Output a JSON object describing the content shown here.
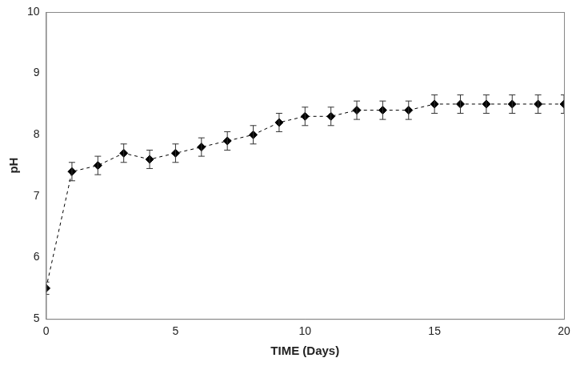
{
  "chart_data": {
    "type": "line",
    "x_label": "TIME (Days)",
    "y_label": "pH",
    "x": [
      0,
      1,
      2,
      3,
      4,
      5,
      6,
      7,
      8,
      9,
      10,
      11,
      12,
      13,
      14,
      15,
      16,
      17,
      18,
      19,
      20
    ],
    "values": [
      5.5,
      7.4,
      7.5,
      7.7,
      7.6,
      7.7,
      7.8,
      7.9,
      8.0,
      8.2,
      8.3,
      8.3,
      8.4,
      8.4,
      8.4,
      8.5,
      8.5,
      8.5,
      8.5,
      8.5,
      8.5
    ],
    "errors": [
      0.1,
      0.15,
      0.15,
      0.15,
      0.15,
      0.15,
      0.15,
      0.15,
      0.15,
      0.15,
      0.15,
      0.15,
      0.15,
      0.15,
      0.15,
      0.15,
      0.15,
      0.15,
      0.15,
      0.15,
      0.15
    ],
    "color": "#000000",
    "marker": "diamond",
    "line_style": "dashed",
    "xlim": [
      0,
      20
    ],
    "xticks": [
      0,
      5,
      10,
      15,
      20
    ],
    "ylim": [
      5,
      10
    ],
    "yticks": [
      5,
      6,
      7,
      8,
      9,
      10
    ],
    "grid": false
  }
}
